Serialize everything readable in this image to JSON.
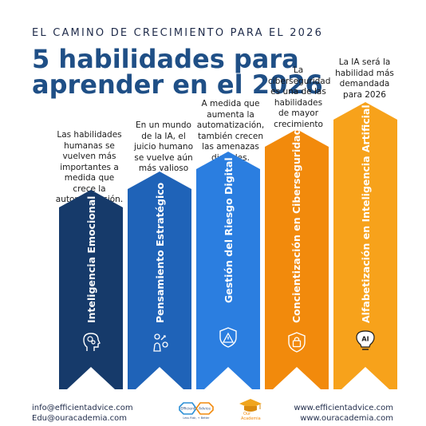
{
  "header": {
    "eyebrow": "EL CAMINO DE CRECIMIENTO PARA EL 2026",
    "title_line1": "5 habilidades para",
    "title_line2": "aprender en el 2026"
  },
  "skills": [
    {
      "label": "Inteligencia Emocional",
      "description": "Las habilidades humanas se vuelven más importantes a medida que crece la automatización.",
      "icon": "head-gears-icon",
      "color": "#163a6a"
    },
    {
      "label": "Pensamiento Estratégico",
      "description": "En un mundo de la IA, el juicio humano se vuelve aún más valioso",
      "icon": "chess-strategy-icon",
      "color": "#1f63b8"
    },
    {
      "label": "Gestión del Riesgo Digital",
      "description": "A medida que aumenta la automatización, también crecen las amenazas digitales.",
      "icon": "shield-warning-icon",
      "color": "#2b7ee0"
    },
    {
      "label": "Concientización en Ciberseguridad",
      "description": "La ciberseguridad es una de las habilidades de mayor crecimiento",
      "icon": "lock-shield-icon",
      "color": "#f28a0c"
    },
    {
      "label": "Alfabetización en Inteligencia Artificial",
      "description": "La IA será la habilidad más demandada para 2026",
      "icon": "ai-lightbulb-icon",
      "color": "#f7a21b"
    }
  ],
  "footer": {
    "email1": "info@efficientadvice.com",
    "email2": "Edu@ouracademia.com",
    "site1": "www.efficientadvice.com",
    "site2": "www.ouracademia.com",
    "logo1_left": "Efficient",
    "logo1_right": "Advice",
    "logo1_tag": "Less Risk, + Better",
    "logo2_top": "Our",
    "logo2_bottom": "Academia"
  }
}
